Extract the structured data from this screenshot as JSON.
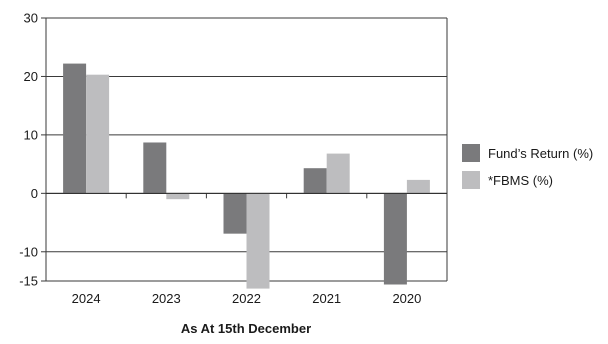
{
  "chart_data": {
    "type": "bar",
    "title": "",
    "xlabel": "As At 15th December",
    "ylabel": "",
    "categories": [
      "2024",
      "2023",
      "2022",
      "2021",
      "2020"
    ],
    "series": [
      {
        "name": "Fund’s Return (%)",
        "values": [
          22.2,
          8.7,
          -6.9,
          4.3,
          -15.6
        ],
        "color": "#7a7a7c"
      },
      {
        "name": "*FBMS (%)",
        "values": [
          20.3,
          -1.0,
          -16.3,
          6.8,
          2.3
        ],
        "color": "#bdbdbf"
      }
    ],
    "y_ticks": [
      30,
      20,
      10,
      0,
      -10,
      -15
    ],
    "ylim": [
      -15,
      30
    ],
    "grid": true,
    "legend_position": "right"
  }
}
